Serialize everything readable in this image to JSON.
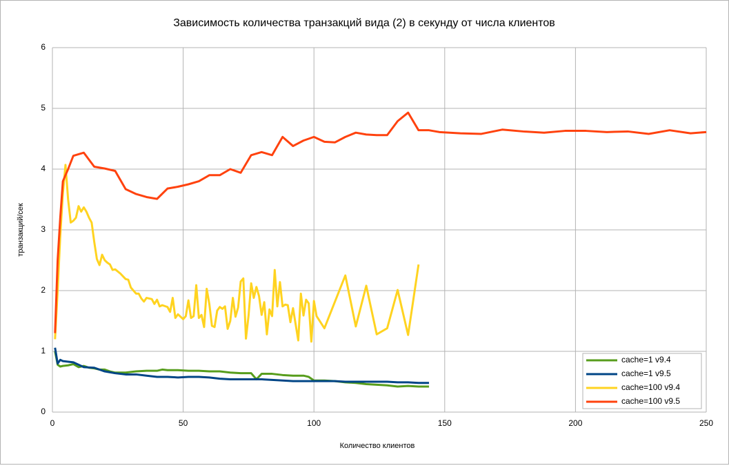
{
  "chart_data": {
    "type": "line",
    "title": "Зависимость количества транзакций вида (2) в секунду от числа клиентов",
    "xlabel": "Количество клиентов",
    "ylabel": "транзакций/сек",
    "xlim": [
      0,
      250
    ],
    "xticks": [
      0,
      50,
      100,
      150,
      200,
      250
    ],
    "ylim": [
      0,
      6
    ],
    "yticks": [
      0,
      1,
      2,
      3,
      4,
      5,
      6
    ],
    "grid": true,
    "legend": "lower right",
    "series": [
      {
        "name": "cache=1 v9.4",
        "color": "#579d1c",
        "x": [
          1,
          2,
          3,
          4,
          6,
          8,
          10,
          12,
          14,
          16,
          18,
          20,
          22,
          24,
          28,
          32,
          36,
          40,
          42,
          44,
          48,
          52,
          56,
          60,
          64,
          68,
          72,
          76,
          78,
          80,
          84,
          88,
          92,
          96,
          98,
          100,
          104,
          108,
          112,
          116,
          120,
          124,
          128,
          132,
          136,
          140,
          144
        ],
        "values": [
          1.0,
          0.78,
          0.75,
          0.76,
          0.77,
          0.79,
          0.74,
          0.76,
          0.73,
          0.72,
          0.7,
          0.7,
          0.67,
          0.65,
          0.65,
          0.67,
          0.68,
          0.68,
          0.7,
          0.69,
          0.69,
          0.68,
          0.68,
          0.67,
          0.67,
          0.65,
          0.64,
          0.64,
          0.54,
          0.63,
          0.63,
          0.61,
          0.6,
          0.6,
          0.58,
          0.52,
          0.52,
          0.51,
          0.49,
          0.48,
          0.46,
          0.45,
          0.44,
          0.42,
          0.43,
          0.42,
          0.42
        ]
      },
      {
        "name": "cache=1 v9.5",
        "color": "#004586",
        "x": [
          1,
          2,
          3,
          4,
          8,
          12,
          16,
          20,
          24,
          28,
          32,
          36,
          40,
          44,
          48,
          52,
          56,
          60,
          64,
          68,
          72,
          76,
          80,
          84,
          88,
          92,
          96,
          100,
          104,
          108,
          112,
          116,
          120,
          124,
          128,
          132,
          136,
          140,
          144
        ],
        "values": [
          1.06,
          0.8,
          0.86,
          0.84,
          0.82,
          0.74,
          0.73,
          0.67,
          0.64,
          0.62,
          0.62,
          0.6,
          0.58,
          0.58,
          0.57,
          0.58,
          0.58,
          0.57,
          0.55,
          0.54,
          0.54,
          0.54,
          0.54,
          0.53,
          0.52,
          0.51,
          0.51,
          0.51,
          0.51,
          0.51,
          0.5,
          0.5,
          0.5,
          0.5,
          0.5,
          0.49,
          0.49,
          0.48,
          0.48
        ]
      },
      {
        "name": "cache=100 v9.4",
        "color": "#ffd320",
        "x": [
          1,
          2,
          3,
          4,
          5,
          6,
          7,
          8,
          9,
          10,
          11,
          12,
          13,
          14,
          15,
          16,
          17,
          18,
          19,
          20,
          21,
          22,
          23,
          24,
          26,
          28,
          29,
          30,
          32,
          33,
          34,
          35,
          36,
          38,
          39,
          40,
          41,
          42,
          44,
          45,
          46,
          47,
          48,
          50,
          51,
          52,
          53,
          54,
          55,
          56,
          57,
          58,
          59,
          60,
          61,
          62,
          63,
          64,
          65,
          66,
          67,
          68,
          69,
          70,
          71,
          72,
          73,
          74,
          75,
          76,
          77,
          78,
          79,
          80,
          81,
          82,
          83,
          84,
          85,
          86,
          87,
          88,
          89,
          90,
          91,
          92,
          94,
          95,
          96,
          97,
          98,
          99,
          100,
          101,
          104,
          112,
          116,
          120,
          124,
          128,
          132,
          136,
          140
        ],
        "values": [
          1.2,
          2.0,
          2.9,
          3.6,
          4.07,
          3.5,
          3.12,
          3.15,
          3.2,
          3.39,
          3.3,
          3.37,
          3.3,
          3.2,
          3.12,
          2.8,
          2.52,
          2.42,
          2.59,
          2.5,
          2.46,
          2.43,
          2.34,
          2.35,
          2.28,
          2.19,
          2.18,
          2.05,
          1.95,
          1.95,
          1.87,
          1.82,
          1.88,
          1.86,
          1.78,
          1.85,
          1.74,
          1.76,
          1.73,
          1.65,
          1.88,
          1.55,
          1.61,
          1.53,
          1.58,
          1.84,
          1.55,
          1.58,
          2.09,
          1.55,
          1.6,
          1.4,
          2.03,
          1.78,
          1.42,
          1.4,
          1.67,
          1.73,
          1.7,
          1.74,
          1.37,
          1.5,
          1.88,
          1.57,
          1.72,
          2.15,
          2.2,
          1.21,
          1.59,
          2.12,
          1.88,
          2.06,
          1.91,
          1.6,
          1.81,
          1.28,
          1.69,
          1.58,
          2.34,
          1.74,
          2.14,
          1.74,
          1.77,
          1.76,
          1.48,
          1.71,
          1.18,
          1.95,
          1.59,
          1.85,
          1.79,
          1.16,
          1.83,
          1.58,
          1.38,
          2.25,
          1.41,
          2.08,
          1.28,
          1.38,
          2.01,
          1.27,
          2.43
        ]
      },
      {
        "name": "cache=100 v9.5",
        "color": "#ff420e",
        "x": [
          1,
          2,
          3,
          4,
          6,
          8,
          12,
          16,
          20,
          24,
          28,
          32,
          36,
          40,
          44,
          48,
          52,
          56,
          60,
          64,
          68,
          72,
          76,
          80,
          84,
          88,
          92,
          96,
          100,
          104,
          108,
          112,
          116,
          120,
          124,
          128,
          132,
          136,
          140,
          144,
          148,
          156,
          164,
          172,
          180,
          188,
          196,
          204,
          212,
          220,
          228,
          236,
          244,
          250
        ],
        "values": [
          1.3,
          2.5,
          3.2,
          3.8,
          4.0,
          4.22,
          4.27,
          4.04,
          4.01,
          3.97,
          3.67,
          3.59,
          3.54,
          3.51,
          3.68,
          3.71,
          3.75,
          3.8,
          3.9,
          3.9,
          4.0,
          3.94,
          4.23,
          4.28,
          4.23,
          4.53,
          4.38,
          4.47,
          4.53,
          4.45,
          4.44,
          4.53,
          4.6,
          4.57,
          4.56,
          4.56,
          4.79,
          4.93,
          4.64,
          4.64,
          4.61,
          4.59,
          4.58,
          4.65,
          4.62,
          4.6,
          4.63,
          4.63,
          4.61,
          4.62,
          4.58,
          4.64,
          4.59,
          4.61
        ]
      }
    ]
  }
}
